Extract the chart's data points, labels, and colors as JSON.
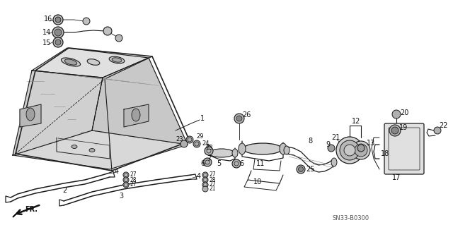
{
  "bg_color": "#ffffff",
  "line_color": "#1a1a1a",
  "text_color": "#111111",
  "diagram_code": "SN33-B0300",
  "figsize": [
    6.4,
    3.19
  ],
  "dpi": 100,
  "xlim": [
    0,
    640
  ],
  "ylim": [
    0,
    319
  ]
}
